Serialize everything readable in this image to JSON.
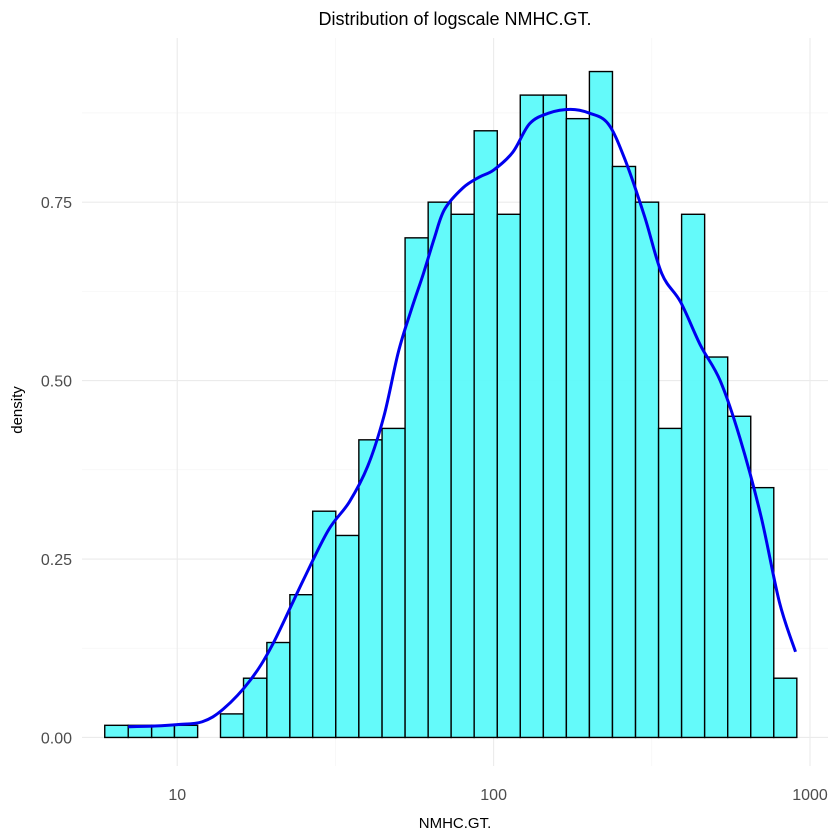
{
  "chart_data": {
    "type": "histogram",
    "title": "Distribution of logscale NMHC.GT.",
    "xlabel": "NMHC.GT.",
    "ylabel": "density",
    "x_scale": "log10",
    "xlim": [
      5.0,
      1140
    ],
    "ylim": [
      -0.04,
      0.98
    ],
    "x_ticks": [
      10,
      100,
      1000
    ],
    "x_tick_labels": [
      "10",
      "100",
      "1000"
    ],
    "y_ticks": [
      0,
      0.25,
      0.5,
      0.75
    ],
    "y_tick_labels": [
      "0.00",
      "0.25",
      "0.50",
      "0.75"
    ],
    "grid": true,
    "colors": {
      "bar_fill": "#5cfafa",
      "bar_outline": "#000000",
      "density_line": "#0000ee"
    },
    "bin_width_log10": 0.0722,
    "bins": [
      {
        "x_min": 5.9,
        "x_max": 7.0,
        "density": 0.017
      },
      {
        "x_min": 7.0,
        "x_max": 8.3,
        "density": 0.017
      },
      {
        "x_min": 8.3,
        "x_max": 9.8,
        "density": 0.017
      },
      {
        "x_min": 9.8,
        "x_max": 11.6,
        "density": 0.017
      },
      {
        "x_min": 11.6,
        "x_max": 13.7,
        "density": 0.0
      },
      {
        "x_min": 13.7,
        "x_max": 16.2,
        "density": 0.033
      },
      {
        "x_min": 16.2,
        "x_max": 19.2,
        "density": 0.083
      },
      {
        "x_min": 19.2,
        "x_max": 22.7,
        "density": 0.133
      },
      {
        "x_min": 22.7,
        "x_max": 26.8,
        "density": 0.2
      },
      {
        "x_min": 26.8,
        "x_max": 31.7,
        "density": 0.317
      },
      {
        "x_min": 31.7,
        "x_max": 37.5,
        "density": 0.283
      },
      {
        "x_min": 37.5,
        "x_max": 44.4,
        "density": 0.417
      },
      {
        "x_min": 44.4,
        "x_max": 52.5,
        "density": 0.433
      },
      {
        "x_min": 52.5,
        "x_max": 62.1,
        "density": 0.7
      },
      {
        "x_min": 62.1,
        "x_max": 73.4,
        "density": 0.75
      },
      {
        "x_min": 73.4,
        "x_max": 86.8,
        "density": 0.733
      },
      {
        "x_min": 86.8,
        "x_max": 102.7,
        "density": 0.85
      },
      {
        "x_min": 102.7,
        "x_max": 121.4,
        "density": 0.733
      },
      {
        "x_min": 121.4,
        "x_max": 143.6,
        "density": 0.9
      },
      {
        "x_min": 143.6,
        "x_max": 169.8,
        "density": 0.9
      },
      {
        "x_min": 169.8,
        "x_max": 200.8,
        "density": 0.867
      },
      {
        "x_min": 200.8,
        "x_max": 237.5,
        "density": 0.933
      },
      {
        "x_min": 237.5,
        "x_max": 280.9,
        "density": 0.8
      },
      {
        "x_min": 280.9,
        "x_max": 332.2,
        "density": 0.75
      },
      {
        "x_min": 332.2,
        "x_max": 392.8,
        "density": 0.433
      },
      {
        "x_min": 392.8,
        "x_max": 464.5,
        "density": 0.733
      },
      {
        "x_min": 464.5,
        "x_max": 549.4,
        "density": 0.533
      },
      {
        "x_min": 549.4,
        "x_max": 649.7,
        "density": 0.45
      },
      {
        "x_min": 649.7,
        "x_max": 768.3,
        "density": 0.35
      },
      {
        "x_min": 768.3,
        "x_max": 908.6,
        "density": 0.083
      }
    ],
    "density_curve": {
      "x": [
        7.0,
        8.5,
        10.0,
        12.0,
        14.0,
        17.0,
        20.0,
        25.0,
        30.0,
        35.0,
        40.0,
        45.0,
        50.0,
        55.0,
        60.0,
        65.0,
        70.0,
        80.0,
        90.0,
        100.0,
        115.0,
        130.0,
        150.0,
        175.0,
        200.0,
        230.0,
        260.0,
        300.0,
        340.0,
        390.0,
        450.0,
        520.0,
        600.0,
        700.0,
        800.0,
        900.0
      ],
      "y": [
        0.015,
        0.016,
        0.018,
        0.022,
        0.04,
        0.08,
        0.13,
        0.22,
        0.29,
        0.33,
        0.38,
        0.45,
        0.54,
        0.6,
        0.65,
        0.7,
        0.74,
        0.77,
        0.785,
        0.795,
        0.82,
        0.86,
        0.875,
        0.88,
        0.875,
        0.86,
        0.81,
        0.73,
        0.65,
        0.61,
        0.55,
        0.5,
        0.42,
        0.31,
        0.19,
        0.12
      ]
    }
  }
}
